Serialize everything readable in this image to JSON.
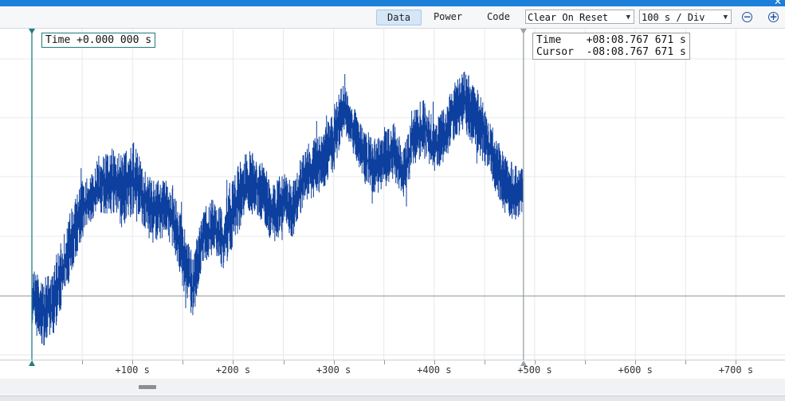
{
  "window": {
    "close_glyph": "✕"
  },
  "toolbar": {
    "tabs": [
      {
        "label": "Data",
        "active": true
      },
      {
        "label": "Power",
        "active": false
      },
      {
        "label": "Code",
        "active": false
      }
    ],
    "mode_select": {
      "value": "Clear On Reset"
    },
    "scale_select": {
      "value": "100 s / Div"
    },
    "zoom_out_icon": "minus-circle-icon",
    "zoom_in_icon": "plus-circle-icon"
  },
  "markers": {
    "start": {
      "label": "Time",
      "value": "+0.000 000 s"
    },
    "cursor": {
      "time_label": "Time",
      "time_value": "+08:08.767 671 s",
      "cursor_label": "Cursor",
      "cursor_value": "-08:08.767 671 s"
    }
  },
  "chart_data": {
    "type": "line",
    "x_unit": "s",
    "x_range": [
      -30,
      730
    ],
    "x_ticks": [
      {
        "value": 100,
        "label": "+100 s"
      },
      {
        "value": 200,
        "label": "+200 s"
      },
      {
        "value": 300,
        "label": "+300 s"
      },
      {
        "value": 400,
        "label": "+400 s"
      },
      {
        "value": 500,
        "label": "+500 s"
      },
      {
        "value": 600,
        "label": "+600 s"
      },
      {
        "value": 700,
        "label": "+700 s"
      }
    ],
    "y_range": [
      0,
      1
    ],
    "baseline_y": 0.2,
    "grid": true,
    "series_color": "#0d3f9e",
    "marker_color": "#1f7f7f",
    "cursor_color": "#9aa0a6",
    "start_marker_x": 0,
    "cursor_marker_x": 488.77,
    "envelope": [
      {
        "x": 0,
        "lo": 0.08,
        "hi": 0.24
      },
      {
        "x": 10,
        "lo": 0.04,
        "hi": 0.2
      },
      {
        "x": 20,
        "lo": 0.05,
        "hi": 0.22
      },
      {
        "x": 30,
        "lo": 0.14,
        "hi": 0.3
      },
      {
        "x": 40,
        "lo": 0.22,
        "hi": 0.38
      },
      {
        "x": 50,
        "lo": 0.3,
        "hi": 0.44
      },
      {
        "x": 60,
        "lo": 0.34,
        "hi": 0.46
      },
      {
        "x": 70,
        "lo": 0.36,
        "hi": 0.5
      },
      {
        "x": 80,
        "lo": 0.36,
        "hi": 0.52
      },
      {
        "x": 90,
        "lo": 0.32,
        "hi": 0.5
      },
      {
        "x": 100,
        "lo": 0.36,
        "hi": 0.54
      },
      {
        "x": 110,
        "lo": 0.33,
        "hi": 0.48
      },
      {
        "x": 120,
        "lo": 0.29,
        "hi": 0.44
      },
      {
        "x": 130,
        "lo": 0.3,
        "hi": 0.45
      },
      {
        "x": 140,
        "lo": 0.28,
        "hi": 0.43
      },
      {
        "x": 150,
        "lo": 0.18,
        "hi": 0.34
      },
      {
        "x": 160,
        "lo": 0.1,
        "hi": 0.26
      },
      {
        "x": 170,
        "lo": 0.24,
        "hi": 0.37
      },
      {
        "x": 180,
        "lo": 0.26,
        "hi": 0.4
      },
      {
        "x": 190,
        "lo": 0.22,
        "hi": 0.38
      },
      {
        "x": 200,
        "lo": 0.28,
        "hi": 0.45
      },
      {
        "x": 210,
        "lo": 0.34,
        "hi": 0.5
      },
      {
        "x": 220,
        "lo": 0.36,
        "hi": 0.52
      },
      {
        "x": 230,
        "lo": 0.34,
        "hi": 0.48
      },
      {
        "x": 240,
        "lo": 0.28,
        "hi": 0.44
      },
      {
        "x": 250,
        "lo": 0.32,
        "hi": 0.46
      },
      {
        "x": 260,
        "lo": 0.3,
        "hi": 0.44
      },
      {
        "x": 270,
        "lo": 0.38,
        "hi": 0.52
      },
      {
        "x": 280,
        "lo": 0.4,
        "hi": 0.54
      },
      {
        "x": 290,
        "lo": 0.42,
        "hi": 0.56
      },
      {
        "x": 300,
        "lo": 0.46,
        "hi": 0.62
      },
      {
        "x": 310,
        "lo": 0.56,
        "hi": 0.68
      },
      {
        "x": 320,
        "lo": 0.5,
        "hi": 0.62
      },
      {
        "x": 330,
        "lo": 0.44,
        "hi": 0.56
      },
      {
        "x": 340,
        "lo": 0.4,
        "hi": 0.54
      },
      {
        "x": 350,
        "lo": 0.42,
        "hi": 0.56
      },
      {
        "x": 360,
        "lo": 0.44,
        "hi": 0.58
      },
      {
        "x": 370,
        "lo": 0.4,
        "hi": 0.52
      },
      {
        "x": 380,
        "lo": 0.48,
        "hi": 0.62
      },
      {
        "x": 390,
        "lo": 0.5,
        "hi": 0.64
      },
      {
        "x": 400,
        "lo": 0.46,
        "hi": 0.58
      },
      {
        "x": 410,
        "lo": 0.48,
        "hi": 0.62
      },
      {
        "x": 420,
        "lo": 0.54,
        "hi": 0.68
      },
      {
        "x": 430,
        "lo": 0.56,
        "hi": 0.71
      },
      {
        "x": 440,
        "lo": 0.52,
        "hi": 0.68
      },
      {
        "x": 450,
        "lo": 0.48,
        "hi": 0.62
      },
      {
        "x": 460,
        "lo": 0.42,
        "hi": 0.56
      },
      {
        "x": 470,
        "lo": 0.36,
        "hi": 0.5
      },
      {
        "x": 480,
        "lo": 0.34,
        "hi": 0.48
      },
      {
        "x": 488,
        "lo": 0.36,
        "hi": 0.48
      }
    ]
  }
}
